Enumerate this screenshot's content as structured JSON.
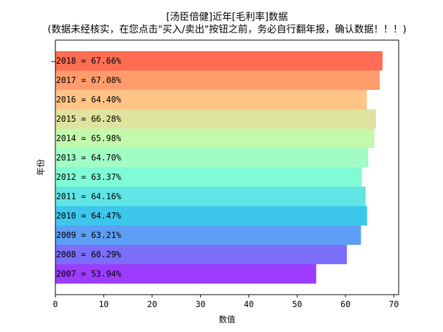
{
  "chart_data": {
    "type": "bar",
    "orientation": "horizontal",
    "title_line1": "[汤臣倍健]近年[毛利率]数据",
    "title_line2": "(数据未经核实，在您点击\"买入/卖出\"按钮之前，务必自行翻年报，确认数据！！！)",
    "xlabel": "数值",
    "ylabel": "年份",
    "xlim": [
      0,
      71
    ],
    "xticks": [
      0,
      10,
      20,
      30,
      40,
      50,
      60,
      70
    ],
    "grid": false,
    "categories": [
      "2007",
      "2008",
      "2009",
      "2010",
      "2011",
      "2012",
      "2013",
      "2014",
      "2015",
      "2016",
      "2017",
      "2018"
    ],
    "values": [
      53.94,
      60.29,
      63.21,
      64.47,
      64.16,
      63.37,
      64.7,
      65.98,
      66.28,
      64.4,
      67.08,
      67.66
    ],
    "labels": [
      "2007 = 53.94%",
      "2008 = 60.29%",
      "2009 = 63.21%",
      "2010 = 64.47%",
      "2011 = 64.16%",
      "2012 = 63.37%",
      "2013 = 64.70%",
      "2014 = 65.98%",
      "2015 = 66.28%",
      "2016 = 64.40%",
      "2017 = 67.08%",
      "2018 = 67.66%"
    ],
    "colors": [
      "#9c3cff",
      "#7b6ef8",
      "#5c9ff4",
      "#3ec7ec",
      "#5ee5e4",
      "#7ffbd6",
      "#a2fdc5",
      "#c2f9ad",
      "#dfe39f",
      "#ffc486",
      "#ff9c6c",
      "#ff6d54"
    ]
  }
}
